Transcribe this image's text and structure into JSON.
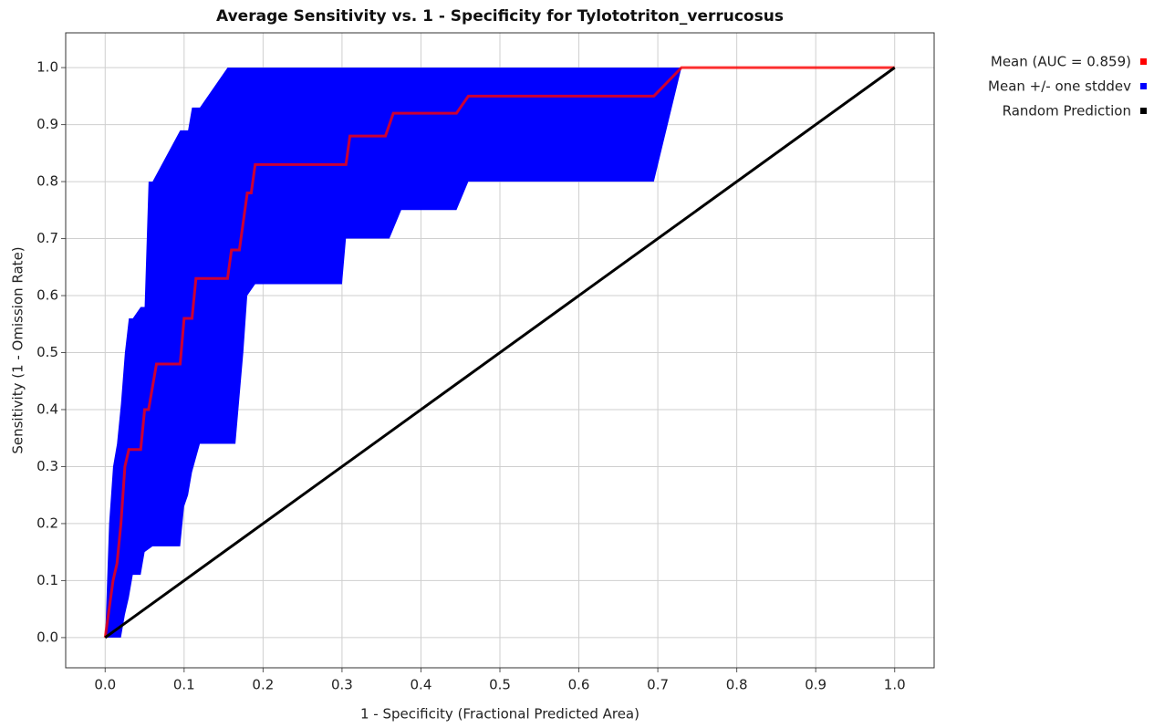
{
  "chart_data": {
    "type": "roc",
    "title": "Average Sensitivity vs. 1 - Specificity for Tylototriton_verrucosus",
    "xlabel": "1 - Specificity (Fractional Predicted Area)",
    "ylabel": "Sensitivity (1 - Omission Rate)",
    "xlim": [
      -0.05,
      1.05
    ],
    "ylim": [
      -0.053,
      1.061
    ],
    "xticks": [
      {
        "value": 0,
        "label": "0.0"
      },
      0.1,
      0.2,
      0.3,
      0.4,
      0.5,
      0.6,
      0.7,
      0.8,
      0.9,
      {
        "value": 1,
        "label": "1.0"
      }
    ],
    "yticks": [
      {
        "value": 0,
        "label": "0.0"
      },
      0.1,
      0.2,
      0.3,
      0.4,
      0.5,
      0.6,
      0.7,
      0.8,
      0.9,
      {
        "value": 1,
        "label": "1.0"
      }
    ],
    "grid": true,
    "legend": "right",
    "series": [
      {
        "name": "Mean (AUC = 0.859)",
        "color": "#ff0000",
        "kind": "line",
        "x": [
          0,
          0.005,
          0.01,
          0.015,
          0.02,
          0.025,
          0.03,
          0.045,
          0.05,
          0.055,
          0.065,
          0.095,
          0.1,
          0.11,
          0.115,
          0.155,
          0.16,
          0.17,
          0.18,
          0.185,
          0.19,
          0.305,
          0.31,
          0.355,
          0.365,
          0.445,
          0.46,
          0.695,
          0.73,
          1.0
        ],
        "values": [
          0,
          0.05,
          0.1,
          0.13,
          0.2,
          0.3,
          0.33,
          0.33,
          0.4,
          0.4,
          0.48,
          0.48,
          0.56,
          0.56,
          0.63,
          0.63,
          0.68,
          0.68,
          0.78,
          0.78,
          0.83,
          0.83,
          0.88,
          0.88,
          0.92,
          0.92,
          0.95,
          0.95,
          1.0,
          1.0
        ]
      },
      {
        "name": "Mean +/- one stddev",
        "color": "#0000ff",
        "kind": "band",
        "x": [
          0,
          0.005,
          0.01,
          0.015,
          0.02,
          0.025,
          0.03,
          0.035,
          0.045,
          0.05,
          0.055,
          0.06,
          0.095,
          0.1,
          0.105,
          0.11,
          0.12,
          0.155,
          0.165,
          0.175,
          0.18,
          0.19,
          0.3,
          0.305,
          0.36,
          0.375,
          0.445,
          0.46,
          0.695,
          0.73,
          1.0
        ],
        "upper": [
          0,
          0.2,
          0.3,
          0.34,
          0.41,
          0.5,
          0.56,
          0.56,
          0.58,
          0.58,
          0.8,
          0.8,
          0.89,
          0.89,
          0.89,
          0.93,
          0.93,
          1,
          1,
          1,
          1,
          1,
          1,
          1,
          1,
          1,
          1,
          1,
          1,
          1,
          1
        ],
        "lower": [
          0,
          0,
          0,
          0,
          0,
          0.04,
          0.07,
          0.11,
          0.11,
          0.15,
          0.155,
          0.16,
          0.16,
          0.23,
          0.25,
          0.29,
          0.34,
          0.34,
          0.34,
          0.5,
          0.6,
          0.62,
          0.62,
          0.7,
          0.7,
          0.75,
          0.75,
          0.8,
          0.8,
          1,
          1
        ]
      },
      {
        "name": "Random Prediction",
        "color": "#000000",
        "kind": "line",
        "x": [
          0,
          1
        ],
        "values": [
          0,
          1
        ]
      }
    ]
  }
}
